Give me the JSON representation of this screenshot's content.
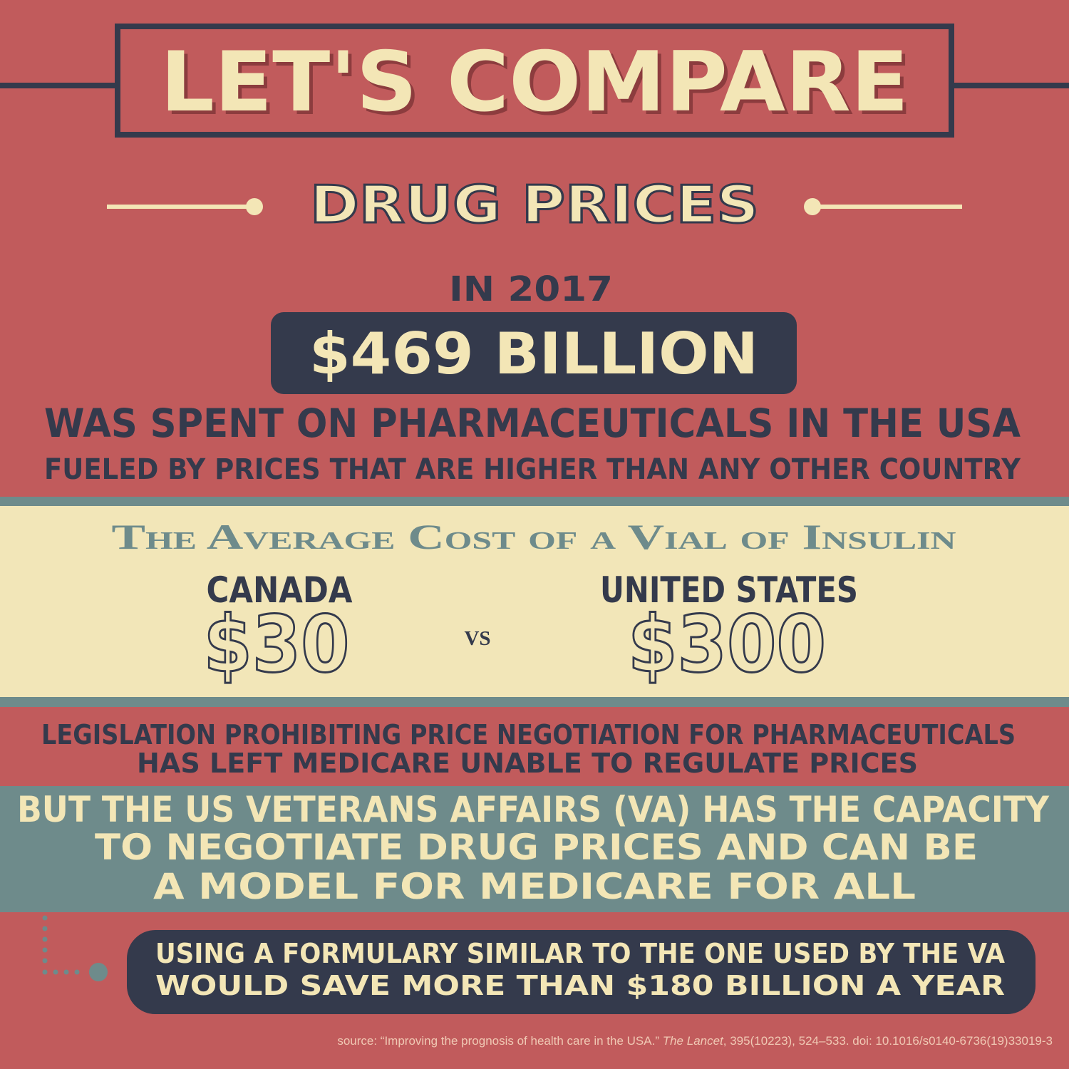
{
  "header": {
    "title": "LET'S COMPARE",
    "subtitle": "DRUG PRICES"
  },
  "spending": {
    "year_label": "IN 2017",
    "amount": "$469 BILLION",
    "line1": "WAS SPENT ON PHARMACEUTICALS IN THE USA",
    "line2": "FUELED BY PRICES THAT ARE HIGHER THAN ANY OTHER COUNTRY"
  },
  "insulin": {
    "title": "The Average Cost of a Vial of Insulin",
    "left": {
      "country": "CANADA",
      "price": "$30"
    },
    "separator": "vs",
    "right": {
      "country": "UNITED STATES",
      "price": "$300"
    }
  },
  "legislation": [
    "LEGISLATION PROHIBITING PRICE NEGOTIATION FOR PHARMACEUTICALS",
    "HAS LEFT MEDICARE UNABLE TO REGULATE PRICES"
  ],
  "va": [
    "BUT THE US VETERANS AFFAIRS (VA) HAS THE CAPACITY",
    "TO NEGOTIATE DRUG PRICES AND CAN BE",
    "A MODEL FOR MEDICARE FOR ALL"
  ],
  "formulary": [
    "USING A FORMULARY SIMILAR TO THE ONE USED BY THE VA",
    "WOULD SAVE MORE THAN $180 BILLION A YEAR"
  ],
  "source": {
    "before": "source: “Improving the prognosis of health care in the USA.” ",
    "journal": "The Lancet",
    "after": ", 395(10223), 524–533. doi: 10.1016/s0140-6736(19)33019-3"
  }
}
